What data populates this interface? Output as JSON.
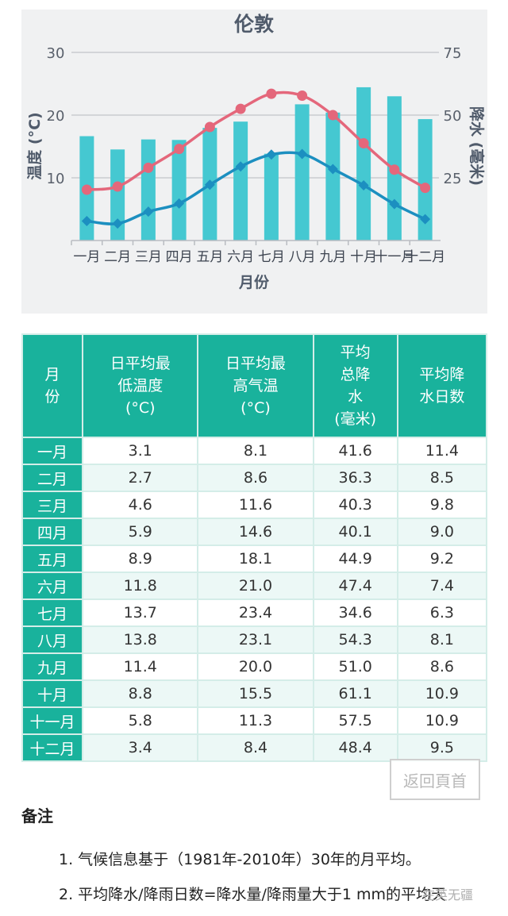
{
  "chart_data": {
    "type": "bar",
    "title": "伦敦",
    "xlabel": "月份",
    "ylabel_left": "温度 (°C)",
    "ylabel_right": "降水 (毫米)",
    "categories": [
      "一月",
      "二月",
      "三月",
      "四月",
      "五月",
      "六月",
      "七月",
      "八月",
      "九月",
      "十月",
      "十一月",
      "十二月"
    ],
    "y_left_ticks": [
      "10",
      "20",
      "30"
    ],
    "y_right_ticks": [
      "25",
      "50",
      "75"
    ],
    "ylim_left": [
      0,
      30
    ],
    "ylim_right": [
      0,
      75
    ],
    "series": [
      {
        "kind": "bar",
        "axis": "right",
        "color": "#45c8d1",
        "values": [
          41.6,
          36.3,
          40.3,
          40.1,
          44.9,
          47.4,
          34.6,
          54.3,
          51.0,
          61.1,
          57.5,
          48.4
        ]
      },
      {
        "kind": "line",
        "axis": "left",
        "color": "#e4677b",
        "marker": "circle",
        "values": [
          8.1,
          8.6,
          11.6,
          14.6,
          18.1,
          21.0,
          23.4,
          23.1,
          20.0,
          15.5,
          11.3,
          8.4
        ]
      },
      {
        "kind": "line",
        "axis": "left",
        "color": "#1c8fc0",
        "marker": "diamond",
        "values": [
          3.1,
          2.7,
          4.6,
          5.9,
          8.9,
          11.8,
          13.7,
          13.8,
          11.4,
          8.8,
          5.8,
          3.4
        ]
      }
    ]
  },
  "table": {
    "headers": [
      "月\n份",
      "日平均最\n低温度\n(°C)",
      "日平均最\n高气温\n(°C)",
      "平均\n总降\n水\n(毫米)",
      "平均降\n水日数"
    ],
    "rows": [
      [
        "一月",
        "3.1",
        "8.1",
        "41.6",
        "11.4"
      ],
      [
        "二月",
        "2.7",
        "8.6",
        "36.3",
        "8.5"
      ],
      [
        "三月",
        "4.6",
        "11.6",
        "40.3",
        "9.8"
      ],
      [
        "四月",
        "5.9",
        "14.6",
        "40.1",
        "9.0"
      ],
      [
        "五月",
        "8.9",
        "18.1",
        "44.9",
        "9.2"
      ],
      [
        "六月",
        "11.8",
        "21.0",
        "47.4",
        "7.4"
      ],
      [
        "七月",
        "13.7",
        "23.4",
        "34.6",
        "6.3"
      ],
      [
        "八月",
        "13.8",
        "23.1",
        "54.3",
        "8.1"
      ],
      [
        "九月",
        "11.4",
        "20.0",
        "51.0",
        "8.6"
      ],
      [
        "十月",
        "8.8",
        "15.5",
        "61.1",
        "10.9"
      ],
      [
        "十一月",
        "5.8",
        "11.3",
        "57.5",
        "10.9"
      ],
      [
        "十二月",
        "3.4",
        "8.4",
        "48.4",
        "9.5"
      ]
    ]
  },
  "back_button": "返回頁首",
  "notes": {
    "title": "备注",
    "items": [
      "1. 气候信息基于（1981年-2010年）30年的月平均。",
      "2. 平均降水/降雨日数=降水量/降雨量大于1 mm的平均天"
    ]
  },
  "watermark": "在英无疆"
}
